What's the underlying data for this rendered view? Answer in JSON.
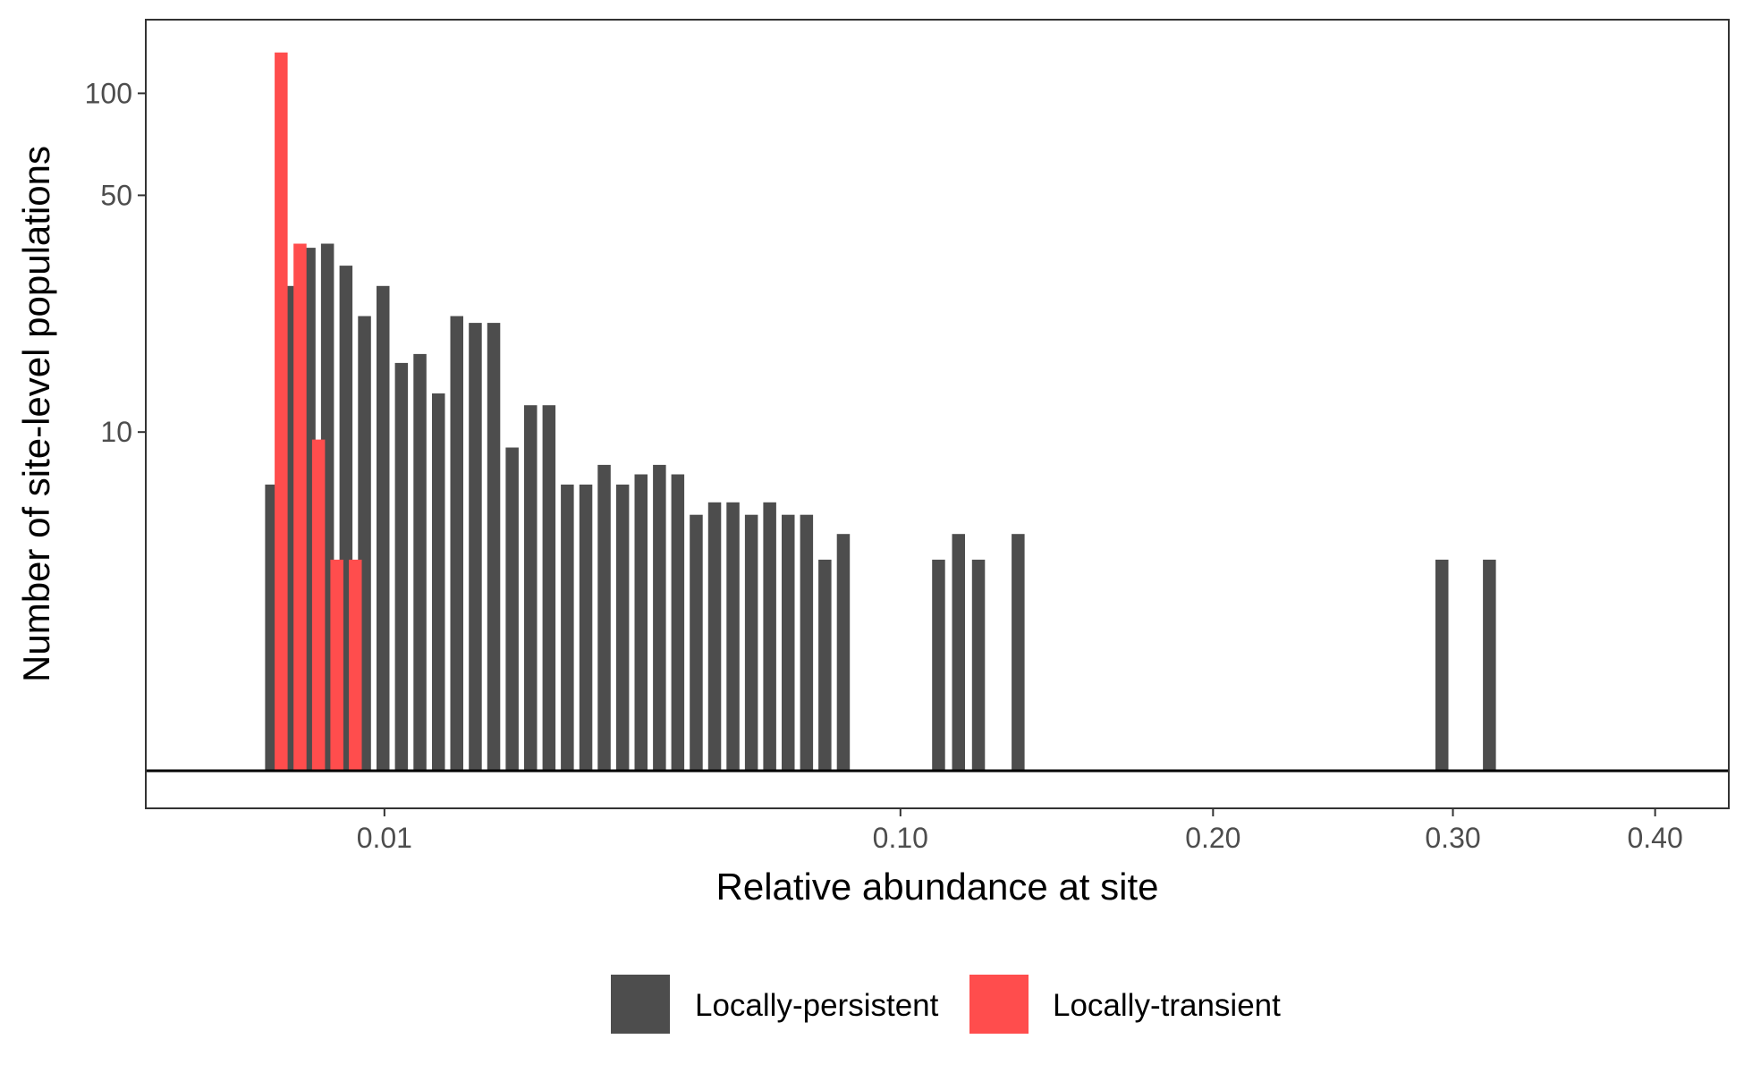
{
  "chart_data": {
    "type": "bar",
    "title": "",
    "xlabel": "Relative abundance at site",
    "ylabel": "Number of site-level populations",
    "x_scale": "sqrt",
    "y_scale": "log",
    "xlim": [
      0.0,
      0.44
    ],
    "ylim": [
      1.0,
      165
    ],
    "x_ticks": [
      0.01,
      0.1,
      0.2,
      0.3,
      0.4
    ],
    "x_tick_labels": [
      "0.01",
      "0.10",
      "0.20",
      "0.30",
      "0.40"
    ],
    "y_ticks": [
      10,
      50,
      100
    ],
    "y_tick_labels": [
      "10",
      "50",
      "100"
    ],
    "legend_position": "bottom",
    "colors": {
      "Locally-persistent": "#4d4d4d",
      "Locally-transient": "#ff4d4d"
    },
    "bin_width_sqrt": 0.00545,
    "series": [
      {
        "name": "Locally-persistent",
        "bins": [
          [
            0.00278,
            7
          ],
          [
            0.00367,
            27
          ],
          [
            0.00468,
            35
          ],
          [
            0.0058,
            36
          ],
          [
            0.00704,
            31
          ],
          [
            0.0084,
            22
          ],
          [
            0.00988,
            27
          ],
          [
            0.01148,
            16
          ],
          [
            0.0132,
            17
          ],
          [
            0.01504,
            13
          ],
          [
            0.01699,
            22
          ],
          [
            0.01907,
            21
          ],
          [
            0.02126,
            21
          ],
          [
            0.02357,
            9
          ],
          [
            0.026,
            12
          ],
          [
            0.02855,
            12
          ],
          [
            0.03121,
            7
          ],
          [
            0.034,
            7
          ],
          [
            0.0369,
            8
          ],
          [
            0.03993,
            7
          ],
          [
            0.04307,
            7.5
          ],
          [
            0.04633,
            8
          ],
          [
            0.0497,
            7.5
          ],
          [
            0.0532,
            5.7
          ],
          [
            0.05682,
            6.2
          ],
          [
            0.06055,
            6.2
          ],
          [
            0.0644,
            5.7
          ],
          [
            0.06837,
            6.2
          ],
          [
            0.07246,
            5.7
          ],
          [
            0.07667,
            5.7
          ],
          [
            0.08099,
            4.2
          ],
          [
            0.08544,
            5
          ],
          [
            0.11037,
            4.2
          ],
          [
            0.116,
            5
          ],
          [
            0.12175,
            4.2
          ],
          [
            0.1336,
            5
          ],
          [
            0.295,
            4.2
          ],
          [
            0.317,
            4.2
          ]
        ]
      },
      {
        "name": "Locally-transient",
        "bins": [
          [
            0.00322,
            132
          ],
          [
            0.00418,
            36
          ],
          [
            0.00524,
            9.5
          ],
          [
            0.00641,
            4.2
          ],
          [
            0.00771,
            4.2
          ]
        ]
      }
    ]
  }
}
